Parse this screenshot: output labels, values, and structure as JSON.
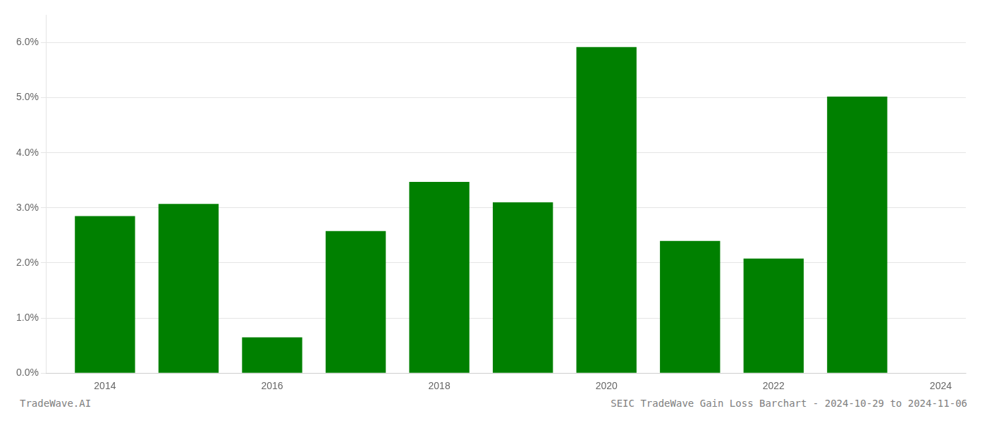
{
  "chart_data": {
    "type": "bar",
    "x": [
      2014,
      2015,
      2016,
      2017,
      2018,
      2019,
      2020,
      2021,
      2022,
      2023
    ],
    "values": [
      0.0285,
      0.0307,
      0.0065,
      0.0258,
      0.0347,
      0.031,
      0.0592,
      0.024,
      0.0208,
      0.0502
    ],
    "color": "#008000",
    "xlim": [
      2013.3,
      2024.3
    ],
    "xticks": [
      2014,
      2016,
      2018,
      2020,
      2022,
      2024
    ],
    "ylim": [
      0,
      0.065
    ],
    "yticks": [
      {
        "value": 0.0,
        "label": "0.0%"
      },
      {
        "value": 0.01,
        "label": "1.0%"
      },
      {
        "value": 0.02,
        "label": "2.0%"
      },
      {
        "value": 0.03,
        "label": "3.0%"
      },
      {
        "value": 0.04,
        "label": "4.0%"
      },
      {
        "value": 0.05,
        "label": "5.0%"
      },
      {
        "value": 0.06,
        "label": "6.0%"
      }
    ],
    "grid": "y",
    "annotations": [
      "TradeWave.AI",
      "SEIC TradeWave Gain Loss Barchart - 2024-10-29 to 2024-11-06"
    ]
  }
}
